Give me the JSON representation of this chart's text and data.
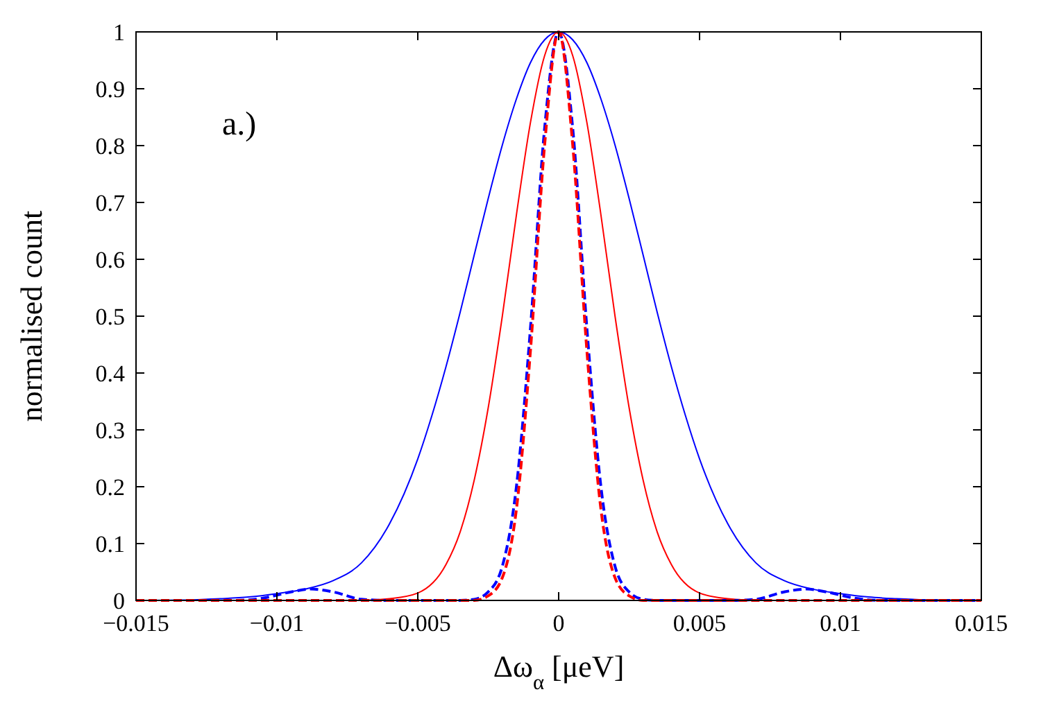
{
  "chart_data": {
    "type": "line",
    "xlabel": "Δω$_{α}$ [μeV]",
    "ylabel": "normalised count",
    "annotations": [
      "a.)"
    ],
    "xlim": [
      -0.015,
      0.015
    ],
    "xticks": [
      {
        "value": -0.015,
        "label": "−0.015"
      },
      {
        "value": -0.01,
        "label": "−0.01"
      },
      {
        "value": -0.005,
        "label": "−0.005"
      },
      0,
      0.005,
      0.01,
      0.015
    ],
    "ylim": [
      0,
      1
    ],
    "yticks": [
      0,
      0.1,
      0.2,
      0.3,
      0.4,
      0.5,
      0.6,
      0.7,
      0.8,
      0.9,
      1
    ],
    "grid": false,
    "series": [
      {
        "color": "#0000ff",
        "line_style": "solid",
        "x": [
          -0.015,
          -0.013,
          -0.012,
          -0.011,
          -0.01,
          -0.009,
          -0.008,
          -0.007,
          -0.006,
          -0.005,
          -0.0045,
          -0.004,
          -0.0035,
          -0.003,
          -0.0025,
          -0.002,
          -0.0015,
          -0.001,
          -0.0005,
          0,
          0.0005,
          0.001,
          0.0015,
          0.002,
          0.0025,
          0.003,
          0.0035,
          0.004,
          0.0045,
          0.005,
          0.006,
          0.007,
          0.008,
          0.009,
          0.01,
          0.011,
          0.012,
          0.013,
          0.015
        ],
        "values": [
          0,
          0.001,
          0.003,
          0.006,
          0.012,
          0.02,
          0.035,
          0.066,
          0.135,
          0.249,
          0.325,
          0.411,
          0.506,
          0.607,
          0.707,
          0.801,
          0.882,
          0.946,
          0.986,
          1,
          0.986,
          0.946,
          0.882,
          0.801,
          0.707,
          0.607,
          0.506,
          0.411,
          0.325,
          0.249,
          0.135,
          0.066,
          0.035,
          0.02,
          0.012,
          0.006,
          0.003,
          0.001,
          0
        ]
      },
      {
        "color": "#ff0000",
        "line_style": "solid",
        "x": [
          -0.015,
          -0.007,
          -0.006,
          -0.005,
          -0.004,
          -0.0035,
          -0.003,
          -0.0025,
          -0.002,
          -0.0015,
          -0.001,
          -0.0005,
          0,
          0.0005,
          0.001,
          0.0015,
          0.002,
          0.0025,
          0.003,
          0.0035,
          0.004,
          0.005,
          0.006,
          0.007,
          0.015
        ],
        "values": [
          0,
          0,
          0.003,
          0.013,
          0.063,
          0.12,
          0.211,
          0.339,
          0.5,
          0.678,
          0.841,
          0.958,
          1,
          0.958,
          0.841,
          0.678,
          0.5,
          0.339,
          0.211,
          0.12,
          0.063,
          0.013,
          0.003,
          0,
          0
        ]
      },
      {
        "color": "#0000ff",
        "line_style": "dashed",
        "x": [
          -0.015,
          -0.0115,
          -0.0105,
          -0.0095,
          -0.0088,
          -0.008,
          -0.007,
          -0.006,
          -0.0035,
          -0.003,
          -0.0025,
          -0.002,
          -0.0015,
          -0.001,
          -0.0005,
          0,
          0.0005,
          0.001,
          0.0015,
          0.002,
          0.0025,
          0.003,
          0.0035,
          0.006,
          0.007,
          0.008,
          0.0088,
          0.0095,
          0.0105,
          0.0115,
          0.015
        ],
        "values": [
          0,
          0,
          0.004,
          0.015,
          0.02,
          0.015,
          0.002,
          0,
          0,
          0.002,
          0.015,
          0.06,
          0.2,
          0.48,
          0.83,
          1,
          0.83,
          0.48,
          0.2,
          0.06,
          0.015,
          0.002,
          0,
          0,
          0.002,
          0.015,
          0.02,
          0.015,
          0.004,
          0,
          0
        ]
      },
      {
        "color": "#ff0000",
        "line_style": "dashed",
        "x": [
          -0.015,
          -0.003,
          -0.0025,
          -0.002,
          -0.0015,
          -0.001,
          -0.0005,
          0,
          0.0005,
          0.001,
          0.0015,
          0.002,
          0.0025,
          0.003,
          0.015
        ],
        "values": [
          0,
          0,
          0.008,
          0.04,
          0.16,
          0.44,
          0.8,
          1,
          0.8,
          0.44,
          0.16,
          0.04,
          0.008,
          0,
          0
        ]
      }
    ]
  }
}
